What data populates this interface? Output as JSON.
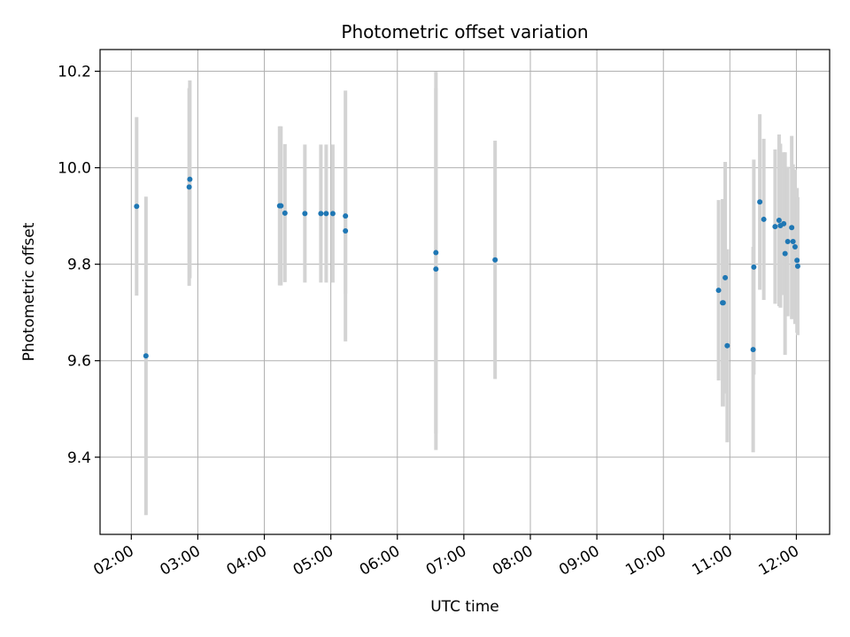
{
  "chart_data": {
    "type": "scatter",
    "title": "Photometric offset variation",
    "xlabel": "UTC time",
    "ylabel": "Photometric offset",
    "xlim_hours": [
      1.53,
      12.5
    ],
    "ylim": [
      9.24,
      10.245
    ],
    "xticks": [
      {
        "hour": 2,
        "label": "02:00"
      },
      {
        "hour": 3,
        "label": "03:00"
      },
      {
        "hour": 4,
        "label": "04:00"
      },
      {
        "hour": 5,
        "label": "05:00"
      },
      {
        "hour": 6,
        "label": "06:00"
      },
      {
        "hour": 7,
        "label": "07:00"
      },
      {
        "hour": 8,
        "label": "08:00"
      },
      {
        "hour": 9,
        "label": "09:00"
      },
      {
        "hour": 10,
        "label": "10:00"
      },
      {
        "hour": 11,
        "label": "11:00"
      },
      {
        "hour": 12,
        "label": "12:00"
      }
    ],
    "yticks": [
      {
        "value": 9.4,
        "label": "9.4"
      },
      {
        "value": 9.6,
        "label": "9.6"
      },
      {
        "value": 9.8,
        "label": "9.8"
      },
      {
        "value": 10.0,
        "label": "10.0"
      },
      {
        "value": 10.2,
        "label": "10.2"
      }
    ],
    "grid": true,
    "point_color": "#1f77b4",
    "errorbar_color": "#d3d3d3",
    "points": [
      {
        "t": 2.08,
        "y": 9.92,
        "err": 0.185
      },
      {
        "t": 2.22,
        "y": 9.61,
        "err": 0.33
      },
      {
        "t": 2.87,
        "y": 9.96,
        "err": 0.205
      },
      {
        "t": 2.88,
        "y": 9.976,
        "err": 0.205
      },
      {
        "t": 4.23,
        "y": 9.921,
        "err": 0.165
      },
      {
        "t": 4.25,
        "y": 9.921,
        "err": 0.165
      },
      {
        "t": 4.31,
        "y": 9.906,
        "err": 0.143
      },
      {
        "t": 4.61,
        "y": 9.905,
        "err": 0.143
      },
      {
        "t": 4.85,
        "y": 9.905,
        "err": 0.143
      },
      {
        "t": 4.93,
        "y": 9.905,
        "err": 0.143
      },
      {
        "t": 5.03,
        "y": 9.905,
        "err": 0.143
      },
      {
        "t": 5.22,
        "y": 9.9,
        "err": 0.26
      },
      {
        "t": 5.22,
        "y": 9.869,
        "err": 0.13
      },
      {
        "t": 6.58,
        "y": 9.824,
        "err": 0.375
      },
      {
        "t": 6.58,
        "y": 9.79,
        "err": 0.375
      },
      {
        "t": 7.47,
        "y": 9.809,
        "err": 0.247
      },
      {
        "t": 10.83,
        "y": 9.746,
        "err": 0.187
      },
      {
        "t": 10.89,
        "y": 9.72,
        "err": 0.215
      },
      {
        "t": 10.9,
        "y": 9.72,
        "err": 0.215
      },
      {
        "t": 10.93,
        "y": 9.772,
        "err": 0.24
      },
      {
        "t": 10.96,
        "y": 9.631,
        "err": 0.2
      },
      {
        "t": 11.35,
        "y": 9.623,
        "err": 0.213
      },
      {
        "t": 11.36,
        "y": 9.794,
        "err": 0.223
      },
      {
        "t": 11.45,
        "y": 9.929,
        "err": 0.182
      },
      {
        "t": 11.51,
        "y": 9.893,
        "err": 0.167
      },
      {
        "t": 11.68,
        "y": 9.878,
        "err": 0.16
      },
      {
        "t": 11.74,
        "y": 9.891,
        "err": 0.178
      },
      {
        "t": 11.76,
        "y": 9.88,
        "err": 0.17
      },
      {
        "t": 11.81,
        "y": 9.884,
        "err": 0.148
      },
      {
        "t": 11.83,
        "y": 9.822,
        "err": 0.21
      },
      {
        "t": 11.87,
        "y": 9.847,
        "err": 0.155
      },
      {
        "t": 11.93,
        "y": 9.876,
        "err": 0.19
      },
      {
        "t": 11.95,
        "y": 9.847,
        "err": 0.16
      },
      {
        "t": 11.98,
        "y": 9.836,
        "err": 0.16
      },
      {
        "t": 12.01,
        "y": 9.808,
        "err": 0.15
      },
      {
        "t": 12.02,
        "y": 9.796,
        "err": 0.143
      }
    ]
  }
}
